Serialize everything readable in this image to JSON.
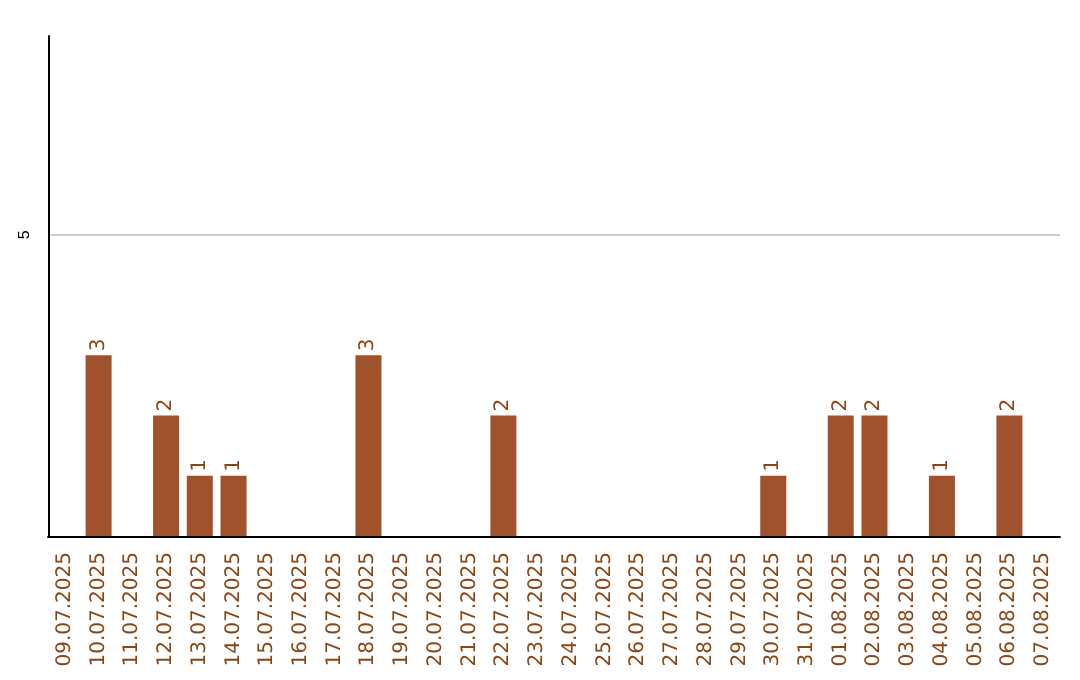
{
  "chart_data": {
    "type": "bar",
    "categories": [
      "09.07.2025",
      "10.07.2025",
      "11.07.2025",
      "12.07.2025",
      "13.07.2025",
      "14.07.2025",
      "15.07.2025",
      "16.07.2025",
      "17.07.2025",
      "18.07.2025",
      "19.07.2025",
      "20.07.2025",
      "21.07.2025",
      "22.07.2025",
      "23.07.2025",
      "24.07.2025",
      "25.07.2025",
      "26.07.2025",
      "27.07.2025",
      "28.07.2025",
      "29.07.2025",
      "30.07.2025",
      "31.07.2025",
      "01.08.2025",
      "02.08.2025",
      "03.08.2025",
      "04.08.2025",
      "05.08.2025",
      "06.08.2025",
      "07.08.2025"
    ],
    "values": [
      0,
      3,
      0,
      2,
      1,
      1,
      0,
      0,
      0,
      3,
      0,
      0,
      0,
      2,
      0,
      0,
      0,
      0,
      0,
      0,
      0,
      1,
      0,
      2,
      2,
      0,
      1,
      0,
      2,
      0
    ],
    "value_labels": [
      null,
      "3",
      null,
      "2",
      "1",
      "1",
      null,
      null,
      null,
      "3",
      null,
      null,
      null,
      "2",
      null,
      null,
      null,
      null,
      null,
      null,
      null,
      "1",
      null,
      "2",
      "2",
      null,
      "1",
      null,
      "2",
      null
    ],
    "color": "#a0522d",
    "ylim": [
      0,
      8.3
    ],
    "yticks": [
      5
    ],
    "grid": "y"
  }
}
